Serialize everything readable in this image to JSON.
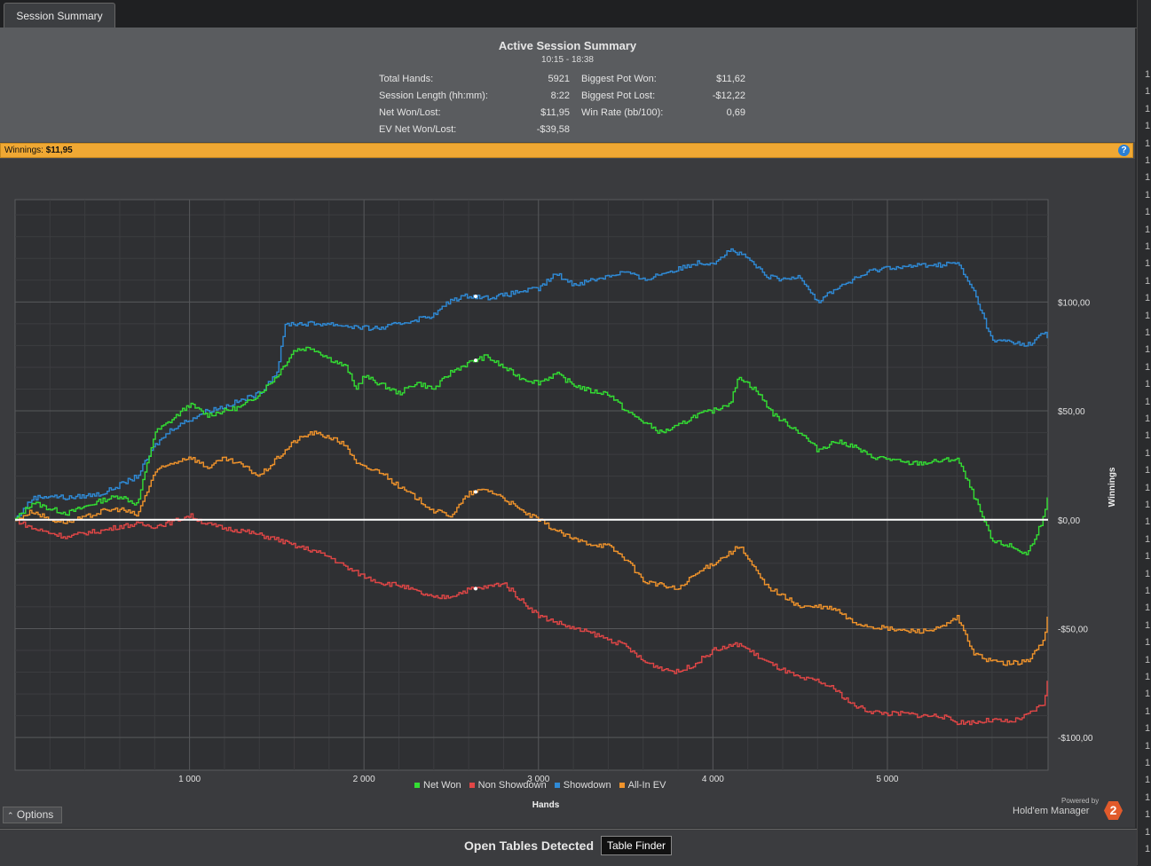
{
  "tab": {
    "label": "Session Summary"
  },
  "summary": {
    "title": "Active Session Summary",
    "time": "10:15 - 18:38",
    "stats_left": [
      {
        "label": "Total Hands:",
        "value": "5921"
      },
      {
        "label": "Session Length (hh:mm):",
        "value": "8:22"
      },
      {
        "label": "Net Won/Lost:",
        "value": "$11,95"
      },
      {
        "label": "EV Net Won/Lost:",
        "value": "-$39,58"
      }
    ],
    "stats_right": [
      {
        "label": "Biggest Pot Won:",
        "value": "$11,62"
      },
      {
        "label": "Biggest Pot Lost:",
        "value": "-$12,22"
      },
      {
        "label": "Win Rate (bb/100):",
        "value": "0,69"
      }
    ]
  },
  "winnings_bar": {
    "label": "Winnings:",
    "value": "$11,95",
    "help": "?"
  },
  "chart_data": {
    "type": "line",
    "xlabel": "Hands",
    "ylabel": "Winnings",
    "xlim": [
      0,
      5921
    ],
    "ylim": [
      -115,
      147
    ],
    "x_ticks": [
      1000,
      2000,
      3000,
      4000,
      5000
    ],
    "x_tick_labels": [
      "1 000",
      "2 000",
      "3 000",
      "4 000",
      "5 000"
    ],
    "y_ticks": [
      100,
      50,
      0,
      -50,
      -100
    ],
    "y_tick_labels": [
      "$100,00",
      "$50,00",
      "$0,00",
      "-$50,00",
      "-$100,00"
    ],
    "grid": true,
    "legend_position": "bottom",
    "series": [
      {
        "name": "Net Won",
        "color": "#33dd33",
        "points": [
          [
            0,
            0
          ],
          [
            100,
            8
          ],
          [
            200,
            5
          ],
          [
            300,
            3
          ],
          [
            400,
            6
          ],
          [
            500,
            9
          ],
          [
            600,
            11
          ],
          [
            700,
            7
          ],
          [
            800,
            40
          ],
          [
            900,
            46
          ],
          [
            1000,
            53
          ],
          [
            1100,
            48
          ],
          [
            1200,
            50
          ],
          [
            1300,
            52
          ],
          [
            1400,
            58
          ],
          [
            1500,
            66
          ],
          [
            1600,
            78
          ],
          [
            1700,
            79
          ],
          [
            1800,
            74
          ],
          [
            1900,
            70
          ],
          [
            1950,
            60
          ],
          [
            2000,
            66
          ],
          [
            2100,
            62
          ],
          [
            2200,
            58
          ],
          [
            2300,
            63
          ],
          [
            2400,
            60
          ],
          [
            2500,
            68
          ],
          [
            2600,
            72
          ],
          [
            2700,
            75
          ],
          [
            2800,
            70
          ],
          [
            2900,
            65
          ],
          [
            3000,
            63
          ],
          [
            3100,
            67
          ],
          [
            3200,
            62
          ],
          [
            3300,
            59
          ],
          [
            3400,
            58
          ],
          [
            3500,
            50
          ],
          [
            3600,
            45
          ],
          [
            3700,
            40
          ],
          [
            3800,
            43
          ],
          [
            3900,
            48
          ],
          [
            4000,
            50
          ],
          [
            4100,
            54
          ],
          [
            4150,
            66
          ],
          [
            4250,
            59
          ],
          [
            4350,
            48
          ],
          [
            4500,
            40
          ],
          [
            4600,
            32
          ],
          [
            4700,
            36
          ],
          [
            4800,
            34
          ],
          [
            4900,
            29
          ],
          [
            5000,
            28
          ],
          [
            5100,
            26
          ],
          [
            5200,
            26
          ],
          [
            5300,
            27
          ],
          [
            5400,
            28
          ],
          [
            5500,
            10
          ],
          [
            5600,
            -10
          ],
          [
            5700,
            -12
          ],
          [
            5800,
            -16
          ],
          [
            5900,
            2
          ],
          [
            5921,
            12
          ]
        ]
      },
      {
        "name": "Non Showdown",
        "color": "#e14646",
        "points": [
          [
            0,
            0
          ],
          [
            100,
            -4
          ],
          [
            200,
            -6
          ],
          [
            300,
            -8
          ],
          [
            400,
            -6
          ],
          [
            500,
            -5
          ],
          [
            600,
            -3
          ],
          [
            700,
            -2
          ],
          [
            800,
            -3
          ],
          [
            900,
            -1
          ],
          [
            1000,
            2
          ],
          [
            1100,
            -2
          ],
          [
            1200,
            -4
          ],
          [
            1300,
            -5
          ],
          [
            1400,
            -7
          ],
          [
            1500,
            -9
          ],
          [
            1600,
            -12
          ],
          [
            1700,
            -14
          ],
          [
            1800,
            -17
          ],
          [
            1900,
            -22
          ],
          [
            2000,
            -26
          ],
          [
            2100,
            -29
          ],
          [
            2200,
            -30
          ],
          [
            2300,
            -33
          ],
          [
            2400,
            -36
          ],
          [
            2500,
            -35
          ],
          [
            2600,
            -32
          ],
          [
            2700,
            -31
          ],
          [
            2800,
            -29
          ],
          [
            2900,
            -37
          ],
          [
            3000,
            -44
          ],
          [
            3100,
            -47
          ],
          [
            3200,
            -50
          ],
          [
            3300,
            -52
          ],
          [
            3400,
            -55
          ],
          [
            3500,
            -58
          ],
          [
            3600,
            -65
          ],
          [
            3700,
            -68
          ],
          [
            3800,
            -70
          ],
          [
            3900,
            -66
          ],
          [
            4000,
            -60
          ],
          [
            4100,
            -58
          ],
          [
            4150,
            -57
          ],
          [
            4300,
            -65
          ],
          [
            4400,
            -69
          ],
          [
            4500,
            -73
          ],
          [
            4600,
            -74
          ],
          [
            4700,
            -78
          ],
          [
            4800,
            -85
          ],
          [
            4900,
            -88
          ],
          [
            5000,
            -89
          ],
          [
            5100,
            -89
          ],
          [
            5200,
            -90
          ],
          [
            5300,
            -90
          ],
          [
            5400,
            -93
          ],
          [
            5500,
            -93
          ],
          [
            5600,
            -92
          ],
          [
            5700,
            -93
          ],
          [
            5800,
            -90
          ],
          [
            5900,
            -84
          ],
          [
            5921,
            -71
          ]
        ]
      },
      {
        "name": "Showdown",
        "color": "#2f8ad6",
        "points": [
          [
            0,
            0
          ],
          [
            100,
            10
          ],
          [
            200,
            11
          ],
          [
            300,
            10
          ],
          [
            400,
            11
          ],
          [
            500,
            12
          ],
          [
            600,
            16
          ],
          [
            700,
            20
          ],
          [
            800,
            34
          ],
          [
            900,
            42
          ],
          [
            1000,
            46
          ],
          [
            1100,
            50
          ],
          [
            1200,
            52
          ],
          [
            1300,
            55
          ],
          [
            1400,
            58
          ],
          [
            1500,
            68
          ],
          [
            1550,
            90
          ],
          [
            1700,
            90
          ],
          [
            1800,
            90
          ],
          [
            1900,
            89
          ],
          [
            2000,
            88
          ],
          [
            2100,
            88
          ],
          [
            2200,
            90
          ],
          [
            2300,
            92
          ],
          [
            2400,
            94
          ],
          [
            2500,
            101
          ],
          [
            2600,
            103
          ],
          [
            2700,
            102
          ],
          [
            2800,
            103
          ],
          [
            2900,
            105
          ],
          [
            3000,
            106
          ],
          [
            3100,
            113
          ],
          [
            3200,
            108
          ],
          [
            3300,
            110
          ],
          [
            3400,
            112
          ],
          [
            3500,
            114
          ],
          [
            3600,
            110
          ],
          [
            3700,
            113
          ],
          [
            3800,
            115
          ],
          [
            3900,
            118
          ],
          [
            4000,
            118
          ],
          [
            4100,
            124
          ],
          [
            4200,
            120
          ],
          [
            4300,
            112
          ],
          [
            4400,
            110
          ],
          [
            4500,
            112
          ],
          [
            4600,
            100
          ],
          [
            4700,
            106
          ],
          [
            4800,
            110
          ],
          [
            4900,
            114
          ],
          [
            5000,
            116
          ],
          [
            5100,
            116
          ],
          [
            5200,
            117
          ],
          [
            5300,
            117
          ],
          [
            5400,
            118
          ],
          [
            5500,
            104
          ],
          [
            5600,
            82
          ],
          [
            5700,
            82
          ],
          [
            5800,
            80
          ],
          [
            5900,
            86
          ],
          [
            5921,
            83
          ]
        ]
      },
      {
        "name": "All-In EV",
        "color": "#f0932b",
        "points": [
          [
            0,
            0
          ],
          [
            100,
            4
          ],
          [
            200,
            0
          ],
          [
            300,
            -1
          ],
          [
            400,
            1
          ],
          [
            500,
            4
          ],
          [
            600,
            5
          ],
          [
            700,
            2
          ],
          [
            800,
            22
          ],
          [
            900,
            26
          ],
          [
            1000,
            29
          ],
          [
            1100,
            24
          ],
          [
            1200,
            28
          ],
          [
            1300,
            25
          ],
          [
            1400,
            20
          ],
          [
            1500,
            28
          ],
          [
            1600,
            36
          ],
          [
            1700,
            40
          ],
          [
            1800,
            38
          ],
          [
            1900,
            34
          ],
          [
            1950,
            26
          ],
          [
            2000,
            24
          ],
          [
            2100,
            22
          ],
          [
            2200,
            15
          ],
          [
            2300,
            10
          ],
          [
            2400,
            4
          ],
          [
            2500,
            2
          ],
          [
            2600,
            12
          ],
          [
            2700,
            14
          ],
          [
            2800,
            10
          ],
          [
            2900,
            4
          ],
          [
            3000,
            0
          ],
          [
            3100,
            -5
          ],
          [
            3200,
            -9
          ],
          [
            3300,
            -11
          ],
          [
            3400,
            -12
          ],
          [
            3500,
            -18
          ],
          [
            3600,
            -28
          ],
          [
            3700,
            -30
          ],
          [
            3800,
            -32
          ],
          [
            3900,
            -25
          ],
          [
            4000,
            -20
          ],
          [
            4100,
            -15
          ],
          [
            4150,
            -12
          ],
          [
            4300,
            -30
          ],
          [
            4400,
            -35
          ],
          [
            4500,
            -40
          ],
          [
            4600,
            -40
          ],
          [
            4700,
            -41
          ],
          [
            4800,
            -47
          ],
          [
            4900,
            -49
          ],
          [
            5000,
            -50
          ],
          [
            5100,
            -51
          ],
          [
            5200,
            -51
          ],
          [
            5300,
            -50
          ],
          [
            5400,
            -45
          ],
          [
            5500,
            -62
          ],
          [
            5600,
            -65
          ],
          [
            5700,
            -66
          ],
          [
            5800,
            -65
          ],
          [
            5900,
            -55
          ],
          [
            5921,
            -40
          ]
        ]
      }
    ],
    "marker_x": 2640
  },
  "legend_items": [
    "Net Won",
    "Non Showdown",
    "Showdown",
    "All-In EV"
  ],
  "options_button": {
    "label": "Options",
    "icon": "chevron-up-icon"
  },
  "branding": {
    "powered": "Powered by",
    "name": "Hold'em Manager",
    "logo": "2"
  },
  "bottom_bar": {
    "title": "Open Tables Detected",
    "button": "Table Finder"
  },
  "right_strip_digits": [
    "1",
    "1",
    "1",
    "1",
    "1",
    "1",
    "1",
    "1",
    "1",
    "1",
    "1",
    "1",
    "1",
    "1",
    "1",
    "1",
    "1",
    "1",
    "1",
    "1",
    "1",
    "1",
    "1",
    "1",
    "1",
    "1",
    "1",
    "1",
    "1",
    "1",
    "1",
    "1",
    "1",
    "1",
    "1",
    "1",
    "1",
    "1",
    "1",
    "1",
    "1",
    "1",
    "1",
    "1",
    "1",
    "1",
    "1",
    "1",
    "1",
    "1",
    "1",
    "1",
    "1",
    "1",
    "1",
    "1",
    "1",
    "1",
    "1",
    "1",
    "1",
    "1",
    "1",
    "1",
    "1",
    "1",
    "1",
    "1",
    "1",
    "1",
    "1",
    "1",
    "1",
    "1",
    "1",
    "1",
    "1",
    "1",
    "1",
    "1",
    "1",
    "1",
    "1",
    "1",
    "1",
    "1",
    "1",
    "1",
    "1",
    "1",
    "1",
    "1",
    "1",
    "1",
    "1",
    "1",
    "1",
    "1",
    "1",
    "1",
    "1",
    "1",
    "1",
    "1",
    "1",
    "1",
    "1",
    "1",
    "1",
    "1",
    "1",
    "1",
    "1",
    "1",
    "1",
    "1",
    "1",
    "1",
    "1",
    "1",
    "1",
    "1",
    "1",
    "1",
    "1",
    "1",
    "1",
    "1",
    "1",
    "1",
    "1",
    "1",
    "1",
    "1",
    "1",
    "1",
    "1",
    "1",
    "1",
    "1",
    "1",
    "1",
    "1",
    "1",
    "1",
    "1",
    "1",
    "1",
    "1",
    "1"
  ]
}
